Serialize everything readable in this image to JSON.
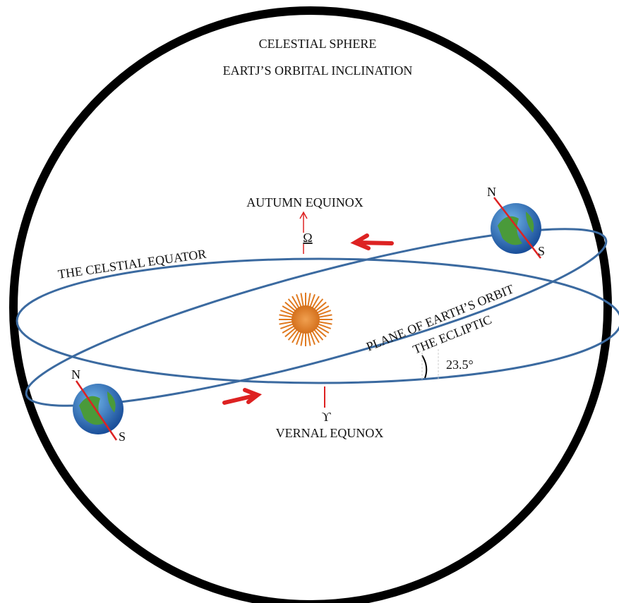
{
  "header": {
    "title": "CELESTIAL SPHERE",
    "subtitle": "EARTJ’S ORBITAL INCLINATION"
  },
  "labels": {
    "autumn": "AUTUMN EQUINOX",
    "omega": "Ω",
    "equator": "THE CELSTIAL EQUATOR",
    "orbit_plane": "PLANE OF EARTH’S ORBIT",
    "ecliptic": "THE ECLIPTIC",
    "angle": "23.5°",
    "aries": "ϒ",
    "vernal": "VERNAL EQUNOX"
  },
  "earths": [
    {
      "north": "N",
      "south": "S"
    },
    {
      "north": "N",
      "south": "S"
    }
  ]
}
